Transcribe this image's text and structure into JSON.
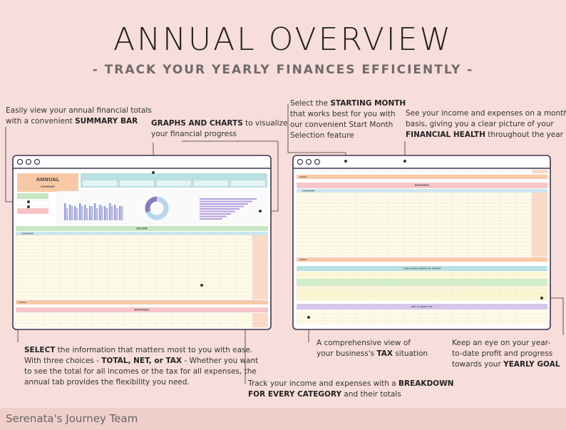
{
  "header": {
    "title": "ANNUAL OVERVIEW",
    "subtitle": "- TRACK YOUR YEARLY FINANCES EFFICIENTLY -"
  },
  "callouts": [
    {
      "lines": [
        [
          "Easily view your annual financial totals"
        ],
        [
          "with a convenient ",
          "SUMMARY BAR"
        ]
      ]
    },
    {
      "lines": [
        [
          "GRAPHS AND CHARTS",
          " to visualize"
        ],
        [
          "your financial progress"
        ]
      ]
    },
    {
      "lines": [
        [
          "Select the ",
          "STARTING MONTH"
        ],
        [
          "that works best for you with"
        ],
        [
          "our convenient Start Month"
        ],
        [
          "Selection feature"
        ]
      ]
    },
    {
      "lines": [
        [
          "See your income and expenses on a monthly"
        ],
        [
          "basis, giving you a clear picture of your"
        ],
        [
          "FINANCIAL HEALTH",
          " throughout the year"
        ]
      ]
    },
    {
      "lines": [
        [
          "SELECT",
          " the information that matters most to you with ease."
        ],
        [
          "With three choices - ",
          "TOTAL, NET, or TAX",
          " - Whether you want"
        ],
        [
          "to see the total for all incomes or the tax for all expenses, the"
        ],
        [
          "annual tab provides the flexibility you need."
        ]
      ]
    },
    {
      "lines": [
        [
          "Track your income and expenses with a ",
          "BREAKDOWN"
        ],
        [
          "FOR EVERY CATEGORY",
          " and their totals"
        ]
      ]
    },
    {
      "lines": [
        [
          "A comprehensive view of"
        ],
        [
          "your business's ",
          "TAX",
          " situation"
        ]
      ]
    },
    {
      "lines": [
        [
          "Keep an eye on your year-"
        ],
        [
          "to-date profit and progress"
        ],
        [
          "towards your ",
          "YEARLY GOAL"
        ]
      ]
    }
  ],
  "sheet": {
    "annual": "ANNUAL",
    "summary": "SUMMARY",
    "income": "INCOME",
    "expenses": "EXPENSES",
    "total": "TOTAL",
    "category": "CATEGORY",
    "cashflow": "CASH FLOW MONTH BY MONTH",
    "tax": "NET & SALES TAX"
  },
  "footer": "Serenata's Journey Team"
}
